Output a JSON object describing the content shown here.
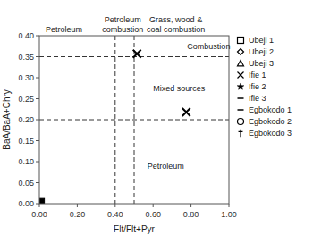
{
  "chart_data": {
    "type": "scatter",
    "xlabel": "Flt/Flt+Pyr",
    "ylabel": "BaA/BaA+Chry",
    "xlim": [
      0.0,
      1.0
    ],
    "ylim": [
      0.0,
      0.4
    ],
    "xticks": [
      {
        "value": 0.0,
        "label": "0.00"
      },
      {
        "value": 0.2,
        "label": "0.20"
      },
      {
        "value": 0.4,
        "label": "0.40"
      },
      {
        "value": 0.6,
        "label": "0.60"
      },
      {
        "value": 0.8,
        "label": "0.80"
      },
      {
        "value": 1.0,
        "label": "1.00"
      }
    ],
    "yticks": [
      {
        "value": 0.0,
        "label": "0.00"
      },
      {
        "value": 0.05,
        "label": "0.05"
      },
      {
        "value": 0.1,
        "label": "0.10"
      },
      {
        "value": 0.15,
        "label": "0.15"
      },
      {
        "value": 0.2,
        "label": "0.20"
      },
      {
        "value": 0.25,
        "label": "0.25"
      },
      {
        "value": 0.3,
        "label": "0.30"
      },
      {
        "value": 0.35,
        "label": "0.35"
      },
      {
        "value": 0.4,
        "label": "0.40"
      }
    ],
    "grid": false,
    "color": "black",
    "hlines": [
      0.2,
      0.35
    ],
    "vlines": [
      0.4,
      0.5
    ],
    "above_labels": [
      {
        "text": "Petroleum",
        "x": 0.13
      },
      {
        "text": "Petroleum\ncombustion",
        "x": 0.44
      },
      {
        "text": "Grass, wood &\ncoal combustion",
        "x": 0.72
      }
    ],
    "inside_labels": [
      {
        "text": "Combustion",
        "x": 0.78,
        "y": 0.375
      },
      {
        "text": "Mixed sources",
        "x": 0.6,
        "y": 0.275
      },
      {
        "text": "Petroleum",
        "x": 0.57,
        "y": 0.09
      }
    ],
    "points": [
      {
        "x": 0.515,
        "y": 0.357,
        "marker": "x"
      },
      {
        "x": 0.775,
        "y": 0.218,
        "marker": "x"
      },
      {
        "x": 0.01,
        "y": 0.005,
        "marker": "square"
      }
    ],
    "legend": "right",
    "legend_items": [
      {
        "name": "Ubeji 1",
        "marker": "square-open"
      },
      {
        "name": "Ubeji 2",
        "marker": "diamond-open"
      },
      {
        "name": "Ubeji 3",
        "marker": "triangle-open"
      },
      {
        "name": "Ifie 1",
        "marker": "x"
      },
      {
        "name": "Ifie 2",
        "marker": "star"
      },
      {
        "name": "Ifie 3",
        "marker": "dash"
      },
      {
        "name": "Egbokodo 1",
        "marker": "dash"
      },
      {
        "name": "Egbokodo 2",
        "marker": "circle-open"
      },
      {
        "name": "Egbokodo 3",
        "marker": "dagger"
      }
    ]
  }
}
